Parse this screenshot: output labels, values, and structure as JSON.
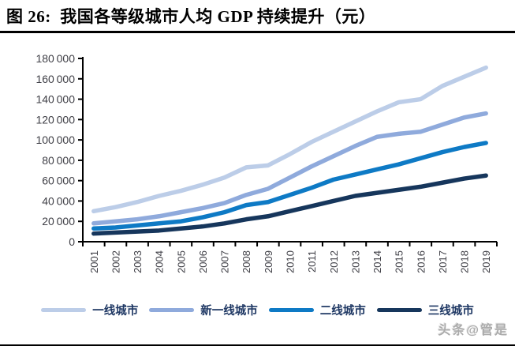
{
  "figure": {
    "title": "图 26:  我国各等级城市人均 GDP 持续提升（元）"
  },
  "watermark": "头条@管是",
  "colors": {
    "background": "#FFFFFF",
    "separator": "#000000",
    "axis_line": "#000000",
    "axis_label": "#3F3F46",
    "legend_text": "#1F3864"
  },
  "chart_data": {
    "type": "line",
    "title": "我国各等级城市人均GDP持续提升（元）",
    "xlabel": "",
    "ylabel": "",
    "categories": [
      "2001",
      "2002",
      "2003",
      "2004",
      "2005",
      "2006",
      "2007",
      "2008",
      "2009",
      "2010",
      "2011",
      "2012",
      "2013",
      "2014",
      "2015",
      "2016",
      "2017",
      "2018",
      "2019"
    ],
    "series": [
      {
        "name": "一线城市",
        "color": "#BCCDE8",
        "values": [
          30000,
          34000,
          39000,
          45000,
          50000,
          56000,
          63000,
          73000,
          75000,
          86000,
          98000,
          108000,
          118000,
          128000,
          137000,
          140000,
          153000,
          162000,
          171000
        ]
      },
      {
        "name": "新一线城市",
        "color": "#8FAADC",
        "values": [
          18000,
          20000,
          22000,
          25000,
          29000,
          33000,
          38000,
          46000,
          52000,
          63000,
          74000,
          84000,
          94000,
          103000,
          106000,
          108000,
          115000,
          122000,
          126000
        ]
      },
      {
        "name": "二线城市",
        "color": "#0E7AC5",
        "values": [
          13000,
          14000,
          16000,
          18000,
          20000,
          24000,
          29000,
          36000,
          39000,
          46000,
          53000,
          61000,
          66000,
          71000,
          76000,
          82000,
          88000,
          93000,
          97000
        ]
      },
      {
        "name": "三线城市",
        "color": "#16365C",
        "values": [
          8000,
          9000,
          10000,
          11000,
          13000,
          15000,
          18000,
          22000,
          25000,
          30000,
          35000,
          40000,
          45000,
          48000,
          51000,
          54000,
          58000,
          62000,
          65000
        ]
      }
    ],
    "ylim": [
      0,
      180000
    ],
    "yticks": [
      0,
      20000,
      40000,
      60000,
      80000,
      100000,
      120000,
      140000,
      160000,
      180000
    ],
    "grid": false,
    "legend_position": "bottom"
  }
}
